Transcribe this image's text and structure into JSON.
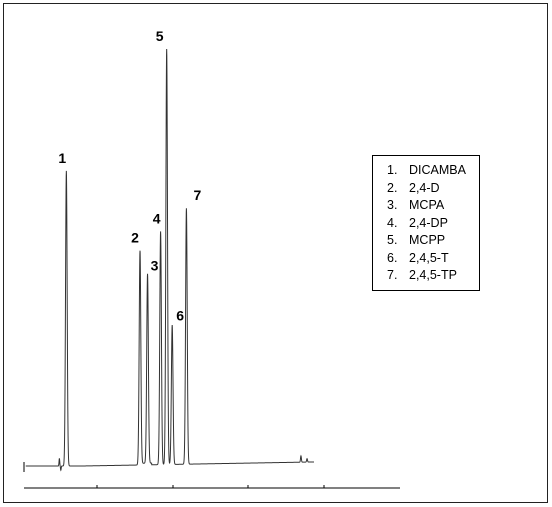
{
  "chart_data": {
    "type": "line",
    "title": "",
    "xlabel": "",
    "ylabel": "",
    "grid": false,
    "xlim": [
      0,
      100
    ],
    "ylim": [
      0,
      100
    ],
    "baseline": 0,
    "peaks": [
      {
        "label": "1",
        "name": "DICAMBA",
        "x": 14.6,
        "height": 70.1
      },
      {
        "label": "2",
        "name": "2,4-D",
        "x": 40.0,
        "height": 50.9
      },
      {
        "label": "3",
        "name": "MCPA",
        "x": 42.6,
        "height": 45.0
      },
      {
        "label": "4",
        "name": "2,4-DP",
        "x": 47.1,
        "height": 55.4
      },
      {
        "label": "5",
        "name": "MCPP",
        "x": 49.2,
        "height": 98.7
      },
      {
        "label": "6",
        "name": "2,4,5-T",
        "x": 51.1,
        "height": 33.1
      },
      {
        "label": "7",
        "name": "2,4,5-TP",
        "x": 56.0,
        "height": 60.8
      }
    ],
    "legend": {
      "position": "right",
      "entries": [
        "1.  DICAMBA",
        "2.  2,4-D",
        "3.  MCPA",
        "4.  2,4-DP",
        "5.  MCPP",
        "6.  2,4,5-T",
        "7.  2,4,5-TP"
      ]
    }
  },
  "legend": {
    "items": [
      {
        "num": "1.",
        "name": "DICAMBA"
      },
      {
        "num": "2.",
        "name": "2,4-D"
      },
      {
        "num": "3.",
        "name": "MCPA"
      },
      {
        "num": "4.",
        "name": "2,4-DP"
      },
      {
        "num": "5.",
        "name": "MCPP"
      },
      {
        "num": "6.",
        "name": "2,4,5-T"
      },
      {
        "num": "7.",
        "name": "2,4,5-TP"
      }
    ]
  },
  "colors": {
    "trace": "#333333",
    "axis": "#000000",
    "frame": "#222222"
  }
}
